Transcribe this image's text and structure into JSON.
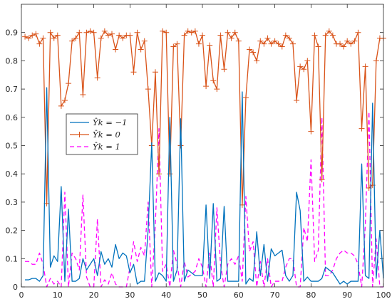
{
  "chart_data": {
    "type": "line",
    "title": "",
    "xlabel": "",
    "ylabel": "",
    "xlim": [
      0,
      100
    ],
    "ylim": [
      0,
      1
    ],
    "xticks": [
      0,
      10,
      20,
      30,
      40,
      50,
      60,
      70,
      80,
      90,
      100
    ],
    "yticks": [
      0,
      0.1,
      0.2,
      0.3,
      0.4,
      0.5,
      0.6,
      0.7,
      0.8,
      0.9
    ],
    "xtick_labels": [
      "0",
      "10",
      "20",
      "30",
      "40",
      "50",
      "60",
      "70",
      "80",
      "90",
      "100"
    ],
    "ytick_labels": [
      "0",
      "0.1",
      "0.2",
      "0.3",
      "0.4",
      "0.5",
      "0.6",
      "0.7",
      "0.8",
      "0.9"
    ],
    "grid": false,
    "legend_position": "middle-left",
    "x": [
      1,
      2,
      3,
      4,
      5,
      6,
      7,
      8,
      9,
      10,
      11,
      12,
      13,
      14,
      15,
      16,
      17,
      18,
      19,
      20,
      21,
      22,
      23,
      24,
      25,
      26,
      27,
      28,
      29,
      30,
      31,
      32,
      33,
      34,
      35,
      36,
      37,
      38,
      39,
      40,
      41,
      42,
      43,
      44,
      45,
      46,
      47,
      48,
      49,
      50,
      51,
      52,
      53,
      54,
      55,
      56,
      57,
      58,
      59,
      60,
      61,
      62,
      63,
      64,
      65,
      66,
      67,
      68,
      69,
      70,
      71,
      72,
      73,
      74,
      75,
      76,
      77,
      78,
      79,
      80,
      81,
      82,
      83,
      84,
      85,
      86,
      87,
      88,
      89,
      90,
      91,
      92,
      93,
      94,
      95,
      96,
      97,
      98,
      99,
      100
    ],
    "series": [
      {
        "name": "Ŷk = −1",
        "color": "#0072BD",
        "style": "solid",
        "marker": "none",
        "values": [
          0.025,
          0.025,
          0.03,
          0.03,
          0.02,
          0.04,
          0.705,
          0.07,
          0.11,
          0.09,
          0.355,
          0.02,
          0.275,
          0.02,
          0.02,
          0.03,
          0.1,
          0.06,
          0.08,
          0.1,
          0.04,
          0.125,
          0.08,
          0.1,
          0.07,
          0.15,
          0.1,
          0.12,
          0.11,
          0.05,
          0.08,
          0.01,
          0.02,
          0.02,
          0.2,
          0.51,
          0.02,
          0.05,
          0.04,
          0.02,
          0.6,
          0.02,
          0.06,
          0.595,
          0.02,
          0.06,
          0.05,
          0.04,
          0.04,
          0.04,
          0.29,
          0.03,
          0.295,
          0.02,
          0.03,
          0.285,
          0.02,
          0.02,
          0.02,
          0.02,
          0.69,
          0.01,
          0.03,
          0.02,
          0.195,
          0.04,
          0.15,
          0.02,
          0.135,
          0.11,
          0.12,
          0.13,
          0.04,
          0.02,
          0.04,
          0.335,
          0.27,
          0.02,
          0.035,
          0.02,
          0.02,
          0.02,
          0.03,
          0.07,
          0.06,
          0.05,
          0.03,
          0.01,
          0.02,
          0.01,
          0.02,
          0.02,
          0.02,
          0.435,
          0.04,
          0.03,
          0.65,
          0.03,
          0.2,
          0.03
        ]
      },
      {
        "name": "Ŷk = 0",
        "color": "#D95319",
        "style": "solid",
        "marker": "plus",
        "values": [
          0.885,
          0.88,
          0.89,
          0.895,
          0.86,
          0.88,
          0.295,
          0.9,
          0.88,
          0.89,
          0.64,
          0.66,
          0.72,
          0.87,
          0.88,
          0.9,
          0.68,
          0.9,
          0.905,
          0.9,
          0.74,
          0.88,
          0.905,
          0.89,
          0.895,
          0.84,
          0.89,
          0.88,
          0.89,
          0.89,
          0.76,
          0.9,
          0.84,
          0.87,
          0.7,
          0.5,
          0.76,
          0.4,
          0.905,
          0.9,
          0.4,
          0.85,
          0.86,
          0.5,
          0.89,
          0.905,
          0.9,
          0.905,
          0.86,
          0.89,
          0.71,
          0.855,
          0.73,
          0.7,
          0.89,
          0.77,
          0.9,
          0.88,
          0.9,
          0.87,
          0.29,
          0.67,
          0.84,
          0.83,
          0.8,
          0.87,
          0.86,
          0.88,
          0.86,
          0.87,
          0.86,
          0.85,
          0.89,
          0.88,
          0.86,
          0.66,
          0.78,
          0.77,
          0.8,
          0.55,
          0.89,
          0.85,
          0.38,
          0.89,
          0.905,
          0.89,
          0.86,
          0.86,
          0.85,
          0.87,
          0.86,
          0.87,
          0.9,
          0.56,
          0.78,
          0.35,
          0.36,
          0.8,
          0.88,
          0.88
        ]
      },
      {
        "name": "Ŷk = 1",
        "color": "#FF00FF",
        "style": "dashed",
        "marker": "none",
        "values": [
          0.09,
          0.09,
          0.08,
          0.08,
          0.12,
          0.08,
          0.0,
          0.03,
          0.01,
          0.02,
          0.0,
          0.335,
          0.0,
          0.12,
          0.1,
          0.06,
          0.325,
          0.035,
          0.0,
          0.0,
          0.24,
          0.0,
          0.025,
          0.01,
          0.05,
          0.01,
          0.0,
          0.0,
          0.0,
          0.07,
          0.16,
          0.09,
          0.14,
          0.11,
          0.3,
          0.0,
          0.22,
          0.56,
          0.055,
          0.08,
          0.0,
          0.13,
          0.08,
          0.0,
          0.09,
          0.035,
          0.045,
          0.055,
          0.1,
          0.07,
          0.0,
          0.12,
          0.0,
          0.28,
          0.08,
          0.0,
          0.08,
          0.1,
          0.08,
          0.11,
          0.02,
          0.32,
          0.125,
          0.16,
          0.0,
          0.09,
          0.0,
          0.1,
          0.0,
          0.02,
          0.02,
          0.02,
          0.07,
          0.1,
          0.1,
          0.0,
          0.0,
          0.21,
          0.16,
          0.45,
          0.09,
          0.13,
          0.6,
          0.04,
          0.04,
          0.06,
          0.1,
          0.12,
          0.13,
          0.12,
          0.12,
          0.11,
          0.08,
          0.0,
          0.22,
          0.62,
          0.0,
          0.17,
          0.0,
          0.0
        ]
      }
    ]
  }
}
